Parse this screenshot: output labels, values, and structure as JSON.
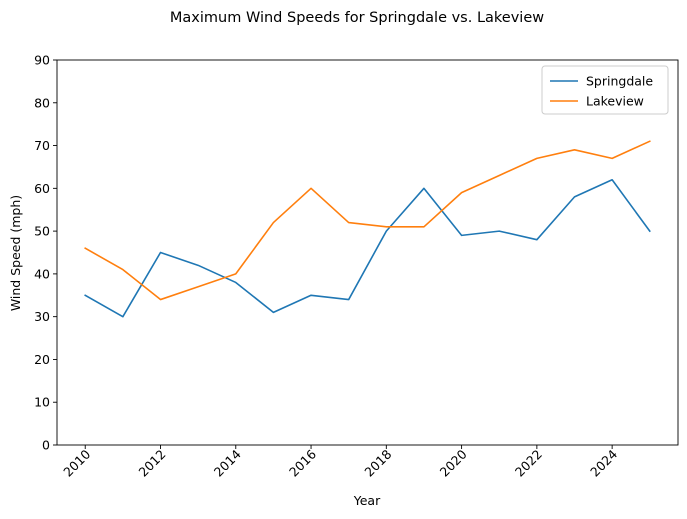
{
  "chart_data": {
    "type": "line",
    "title": "Maximum Wind Speeds for Springdale vs. Lakeview",
    "xlabel": "Year",
    "ylabel": "Wind Speed (mph)",
    "x": [
      2010,
      2011,
      2012,
      2013,
      2014,
      2015,
      2016,
      2017,
      2018,
      2019,
      2020,
      2021,
      2022,
      2023,
      2024,
      2025
    ],
    "xlim": [
      2009.25,
      2025.75
    ],
    "ylim": [
      0,
      90
    ],
    "xticks": [
      2010,
      2012,
      2014,
      2016,
      2018,
      2020,
      2022,
      2024
    ],
    "yticks": [
      0,
      10,
      20,
      30,
      40,
      50,
      60,
      70,
      80,
      90
    ],
    "grid": false,
    "legend_position": "top-right",
    "series": [
      {
        "name": "Springdale",
        "color": "#1f77b4",
        "values": [
          35,
          30,
          45,
          42,
          38,
          31,
          35,
          34,
          50,
          60,
          49,
          50,
          48,
          58,
          62,
          50
        ]
      },
      {
        "name": "Lakeview",
        "color": "#ff7f0e",
        "values": [
          46,
          41,
          34,
          37,
          40,
          52,
          60,
          52,
          51,
          51,
          59,
          63,
          67,
          69,
          67,
          71
        ]
      }
    ]
  }
}
